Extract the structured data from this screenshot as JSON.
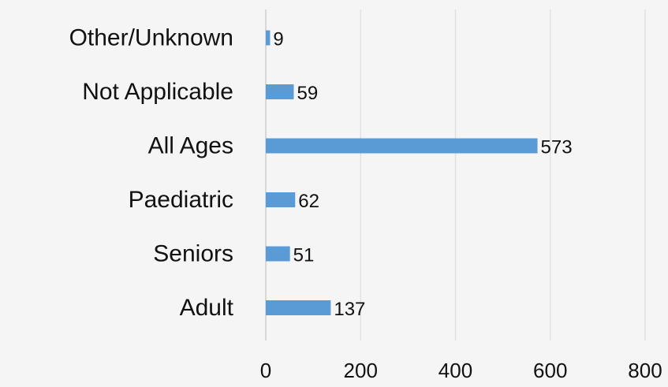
{
  "chart_data": {
    "type": "bar",
    "orientation": "horizontal",
    "categories": [
      "Other/Unknown",
      "Not Applicable",
      "All Ages",
      "Paediatric",
      "Seniors",
      "Adult"
    ],
    "values": [
      9,
      59,
      573,
      62,
      51,
      137
    ],
    "value_labels": [
      "9",
      "59",
      "573",
      "62",
      "51",
      "137"
    ],
    "xlim": [
      0,
      800
    ],
    "xticks": [
      0,
      200,
      400,
      600,
      800
    ],
    "xtick_labels": [
      "0",
      "200",
      "400",
      "600",
      "800"
    ],
    "title": "",
    "xlabel": "",
    "ylabel": "",
    "grid": true,
    "legend": "none",
    "bar_color": "#5b9bd5"
  }
}
